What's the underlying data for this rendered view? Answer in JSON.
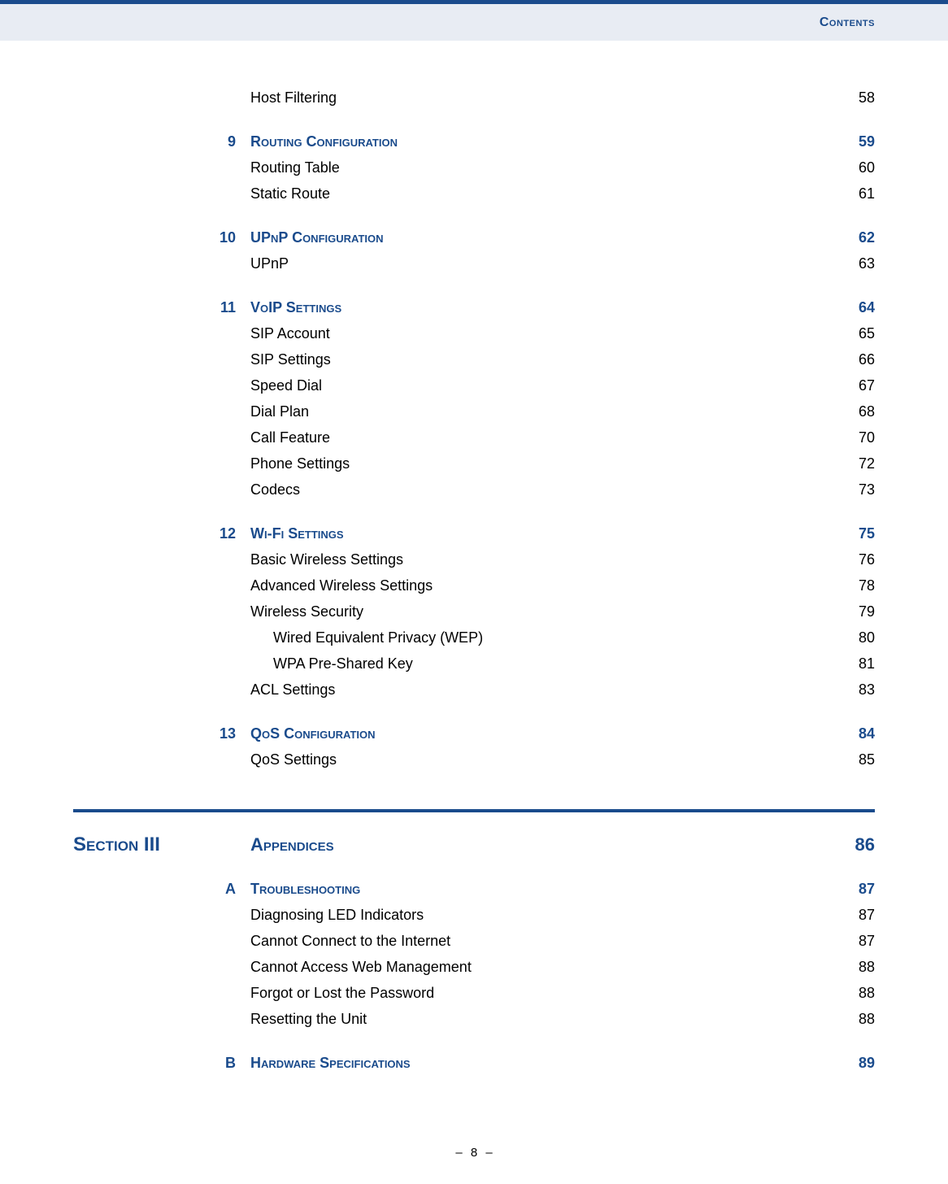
{
  "colors": {
    "accent": "#1a4b8c",
    "header_bg": "#e8ecf3",
    "text": "#000000",
    "page_bg": "#ffffff"
  },
  "header": {
    "title": "Contents"
  },
  "pre_entries": [
    {
      "type": "sub",
      "label": "Host Filtering",
      "page": "58",
      "indent": 1
    }
  ],
  "chapters": [
    {
      "num": "9",
      "title": "Routing Configuration",
      "page": "59",
      "items": [
        {
          "label": "Routing Table",
          "page": "60",
          "indent": 1
        },
        {
          "label": "Static Route",
          "page": "61",
          "indent": 1
        }
      ]
    },
    {
      "num": "10",
      "title": "UPnP Configuration",
      "page": "62",
      "items": [
        {
          "label": "UPnP",
          "page": "63",
          "indent": 1
        }
      ]
    },
    {
      "num": "11",
      "title": "VoIP Settings",
      "page": "64",
      "items": [
        {
          "label": "SIP Account",
          "page": "65",
          "indent": 1
        },
        {
          "label": "SIP Settings",
          "page": "66",
          "indent": 1
        },
        {
          "label": "Speed Dial",
          "page": "67",
          "indent": 1
        },
        {
          "label": "Dial Plan",
          "page": "68",
          "indent": 1
        },
        {
          "label": "Call Feature",
          "page": "70",
          "indent": 1
        },
        {
          "label": "Phone Settings",
          "page": "72",
          "indent": 1
        },
        {
          "label": "Codecs",
          "page": "73",
          "indent": 1
        }
      ]
    },
    {
      "num": "12",
      "title": "Wi-Fi Settings",
      "page": "75",
      "items": [
        {
          "label": "Basic Wireless Settings",
          "page": "76",
          "indent": 1
        },
        {
          "label": "Advanced Wireless Settings",
          "page": "78",
          "indent": 1
        },
        {
          "label": "Wireless Security",
          "page": "79",
          "indent": 1
        },
        {
          "label": "Wired Equivalent Privacy (WEP)",
          "page": "80",
          "indent": 2
        },
        {
          "label": "WPA Pre-Shared Key",
          "page": "81",
          "indent": 2
        },
        {
          "label": "ACL Settings",
          "page": "83",
          "indent": 1
        }
      ]
    },
    {
      "num": "13",
      "title": "QoS Configuration",
      "page": "84",
      "items": [
        {
          "label": "QoS Settings",
          "page": "85",
          "indent": 1
        }
      ]
    }
  ],
  "section": {
    "label": "Section III",
    "title": "Appendices",
    "page": "86"
  },
  "appendices": [
    {
      "num": "A",
      "title": "Troubleshooting",
      "page": "87",
      "items": [
        {
          "label": "Diagnosing LED Indicators",
          "page": "87",
          "indent": 1
        },
        {
          "label": "Cannot Connect to the Internet",
          "page": "87",
          "indent": 1
        },
        {
          "label": "Cannot Access Web Management",
          "page": "88",
          "indent": 1
        },
        {
          "label": "Forgot or Lost the Password",
          "page": "88",
          "indent": 1
        },
        {
          "label": "Resetting the Unit",
          "page": "88",
          "indent": 1
        }
      ]
    },
    {
      "num": "B",
      "title": "Hardware Specifications",
      "page": "89",
      "items": []
    }
  ],
  "footer": {
    "page_number": "8",
    "dash": "–"
  }
}
